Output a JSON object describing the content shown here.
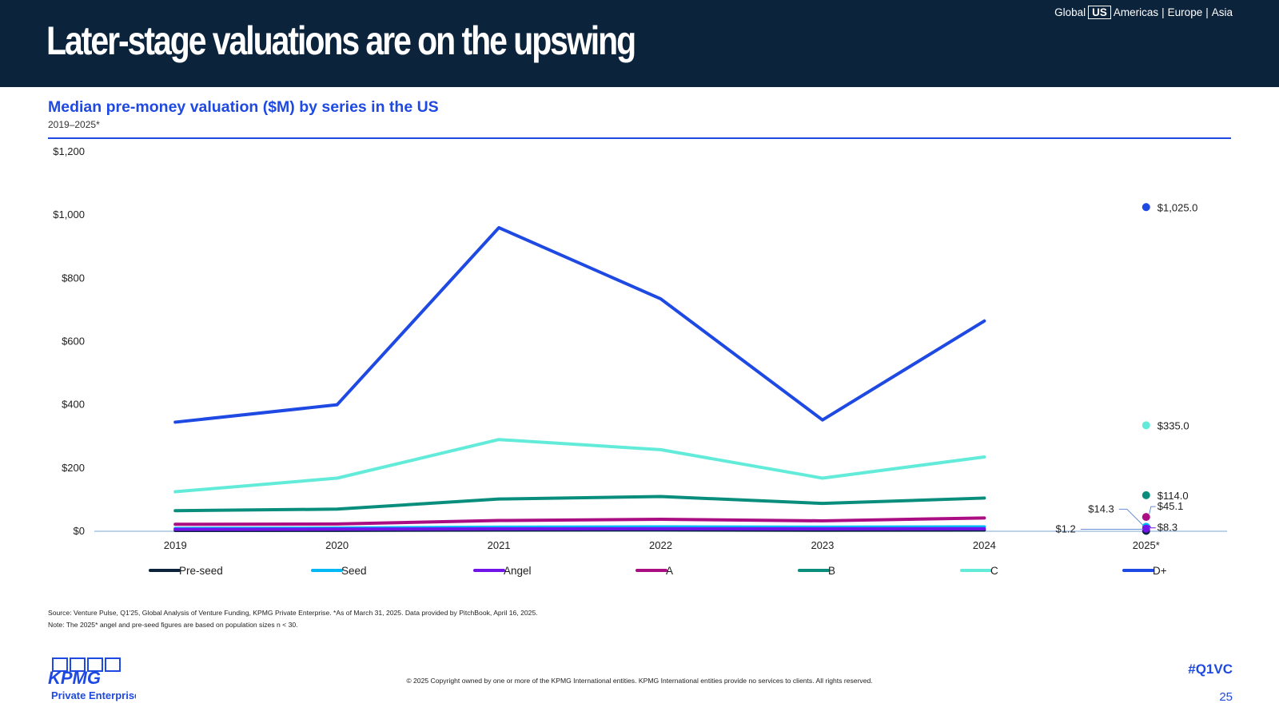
{
  "header": {
    "title": "Later-stage valuations are on the upswing",
    "regions": [
      "Global",
      "US",
      "Americas",
      "Europe",
      "Asia"
    ],
    "active_region": "US"
  },
  "chart_title": "Median pre-money valuation ($M) by series in the US",
  "chart_subtitle": "2019–2025*",
  "chart_data": {
    "type": "line",
    "categories": [
      "2019",
      "2020",
      "2021",
      "2022",
      "2023",
      "2024"
    ],
    "projection_category": "2025*",
    "ylim": [
      0,
      1200
    ],
    "yticks": [
      "$0",
      "$200",
      "$400",
      "$600",
      "$800",
      "$1,000",
      "$1,200"
    ],
    "grid": false,
    "legend_position": "bottom",
    "series": [
      {
        "name": "Pre-seed",
        "color": "#0c233c",
        "values": [
          2.5,
          3,
          4,
          4.5,
          3.5,
          4
        ],
        "point_2025": 1.2,
        "label_2025": "$1.2"
      },
      {
        "name": "Seed",
        "color": "#00b8f5",
        "values": [
          9,
          10,
          13,
          14,
          13,
          14
        ],
        "point_2025": 14.3,
        "label_2025": "$14.3"
      },
      {
        "name": "Angel",
        "color": "#7213ea",
        "values": [
          6,
          6.5,
          7.5,
          8,
          7.5,
          8
        ],
        "point_2025": 8.3,
        "label_2025": "$8.3"
      },
      {
        "name": "A",
        "color": "#ab0d82",
        "values": [
          22,
          23,
          34,
          38,
          33,
          42
        ],
        "point_2025": 45.1,
        "label_2025": "$45.1"
      },
      {
        "name": "B",
        "color": "#098e7e",
        "values": [
          65,
          70,
          102,
          110,
          88,
          105
        ],
        "point_2025": 114.0,
        "label_2025": "$114.0"
      },
      {
        "name": "C",
        "color": "#63ebda",
        "values": [
          125,
          168,
          290,
          258,
          168,
          235
        ],
        "point_2025": 335.0,
        "label_2025": "$335.0"
      },
      {
        "name": "D+",
        "color": "#1e49e2",
        "values": [
          345,
          400,
          960,
          735,
          352,
          665
        ],
        "point_2025": 1025.0,
        "label_2025": "$1,025.0"
      }
    ]
  },
  "footnotes": {
    "source": "Source: Venture Pulse, Q1'25, Global Analysis of Venture Funding, KPMG Private Enterprise. *As of March 31, 2025. Data provided by PitchBook, April 16, 2025.",
    "note": "Note: The 2025* angel and pre-seed figures are based on population sizes n < 30."
  },
  "footer": {
    "logo_text": "KPMG",
    "logo_subtext": "Private Enterprise",
    "copyright": "© 2025 Copyright owned by one or more of the KPMG International entities. KPMG International entities provide no services to clients. All rights reserved.",
    "hashtag": "#Q1VC",
    "page_number": "25"
  },
  "colors": {
    "header_bg": "#0c233c",
    "accent": "#1e49e2"
  }
}
